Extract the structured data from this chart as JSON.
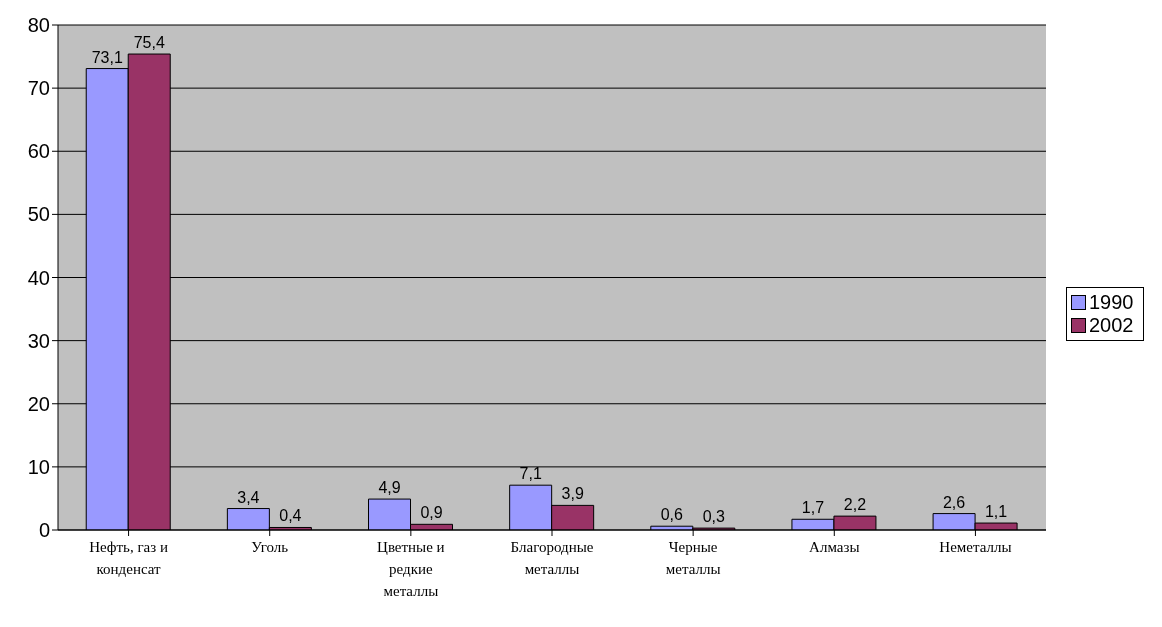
{
  "chart_data": {
    "type": "bar",
    "categories": [
      "Нефть, газ и конденсат",
      "Уголь",
      "Цветные и редкие металлы",
      "Благородные металлы",
      "Черные металлы",
      "Алмазы",
      "Неметаллы"
    ],
    "series": [
      {
        "name": "1990",
        "color": "#9999ff",
        "values": [
          73.1,
          3.4,
          4.9,
          7.1,
          0.6,
          1.7,
          2.6
        ],
        "value_labels": [
          "73,1",
          "3,4",
          "4,9",
          "7,1",
          "0,6",
          "1,7",
          "2,6"
        ]
      },
      {
        "name": "2002",
        "color": "#993366",
        "values": [
          75.4,
          0.4,
          0.9,
          3.9,
          0.3,
          2.2,
          1.1
        ],
        "value_labels": [
          "75,4",
          "0,4",
          "0,9",
          "3,9",
          "0,3",
          "2,2",
          "1,1"
        ]
      }
    ],
    "ylim": [
      0,
      80
    ],
    "yticks": [
      0,
      10,
      20,
      30,
      40,
      50,
      60,
      70,
      80
    ],
    "grid": "y",
    "legend": "right"
  }
}
